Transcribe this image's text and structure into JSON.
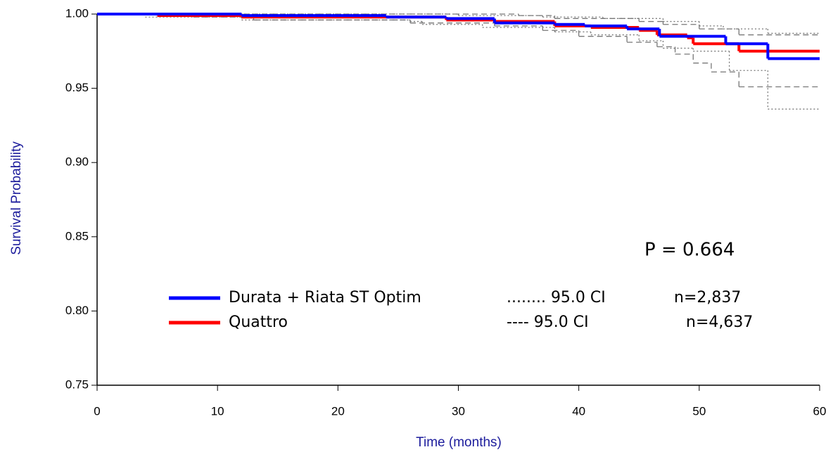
{
  "chart_data": {
    "type": "line",
    "step": true,
    "xlabel": "Time (months)",
    "ylabel": "Survival Probability",
    "annotation": "P = 0.664",
    "xlim": [
      0,
      60
    ],
    "xticks": [
      0,
      10,
      20,
      30,
      40,
      50,
      60
    ],
    "ylim": [
      0.75,
      1
    ],
    "yticks": [
      {
        "value": 1,
        "label": "1.00"
      },
      0.95,
      {
        "value": 0.9,
        "label": "0.90"
      },
      0.85,
      {
        "value": 0.8,
        "label": "0.80"
      },
      0.75
    ],
    "series": [
      {
        "name": "Durata + Riata ST Optim",
        "color": "#0000ff",
        "ci_label": "........ 95.0 CI",
        "n_label": "n=2,837",
        "ci_dash": "2,3",
        "x": [
          0,
          12,
          24,
          29,
          33,
          38,
          40.5,
          44,
          46.7,
          52.2,
          55.7
        ],
        "values": [
          1.0,
          0.999,
          0.998,
          0.997,
          0.994,
          0.993,
          0.992,
          0.99,
          0.985,
          0.98,
          0.97
        ],
        "ci_upper": {
          "x": [
            0,
            30,
            37,
            42,
            47,
            50,
            52,
            55.7
          ],
          "values": [
            1.0,
            0.999,
            0.998,
            0.997,
            0.995,
            0.992,
            0.99,
            0.987
          ]
        },
        "ci_lower": {
          "x": [
            0,
            4,
            12,
            26,
            27,
            32,
            38,
            41,
            45,
            47,
            49.5,
            52.5,
            55.7
          ],
          "values": [
            1.0,
            0.998,
            0.996,
            0.995,
            0.993,
            0.991,
            0.988,
            0.986,
            0.982,
            0.977,
            0.975,
            0.962,
            0.936
          ]
        }
      },
      {
        "name": "Quattro",
        "color": "#ff0000",
        "ci_label": "---- 95.0 CI",
        "n_label": "n=4,637",
        "ci_dash": "8,5",
        "x": [
          0,
          5,
          12,
          29,
          33,
          38,
          41,
          45,
          46.5,
          49,
          49.5,
          53.3
        ],
        "values": [
          1.0,
          0.999,
          0.998,
          0.996,
          0.995,
          0.992,
          0.991,
          0.989,
          0.986,
          0.984,
          0.98,
          0.975
        ],
        "ci_upper": {
          "x": [
            0,
            35,
            38,
            45,
            47,
            50,
            53.3
          ],
          "values": [
            1.0,
            0.999,
            0.997,
            0.995,
            0.993,
            0.99,
            0.986
          ]
        },
        "ci_lower": {
          "x": [
            0,
            8,
            13,
            26,
            33,
            37,
            40,
            44,
            46.5,
            48,
            49.5,
            51,
            53.3
          ],
          "values": [
            1.0,
            0.998,
            0.996,
            0.994,
            0.992,
            0.989,
            0.985,
            0.981,
            0.978,
            0.973,
            0.967,
            0.961,
            0.951
          ]
        }
      }
    ]
  }
}
